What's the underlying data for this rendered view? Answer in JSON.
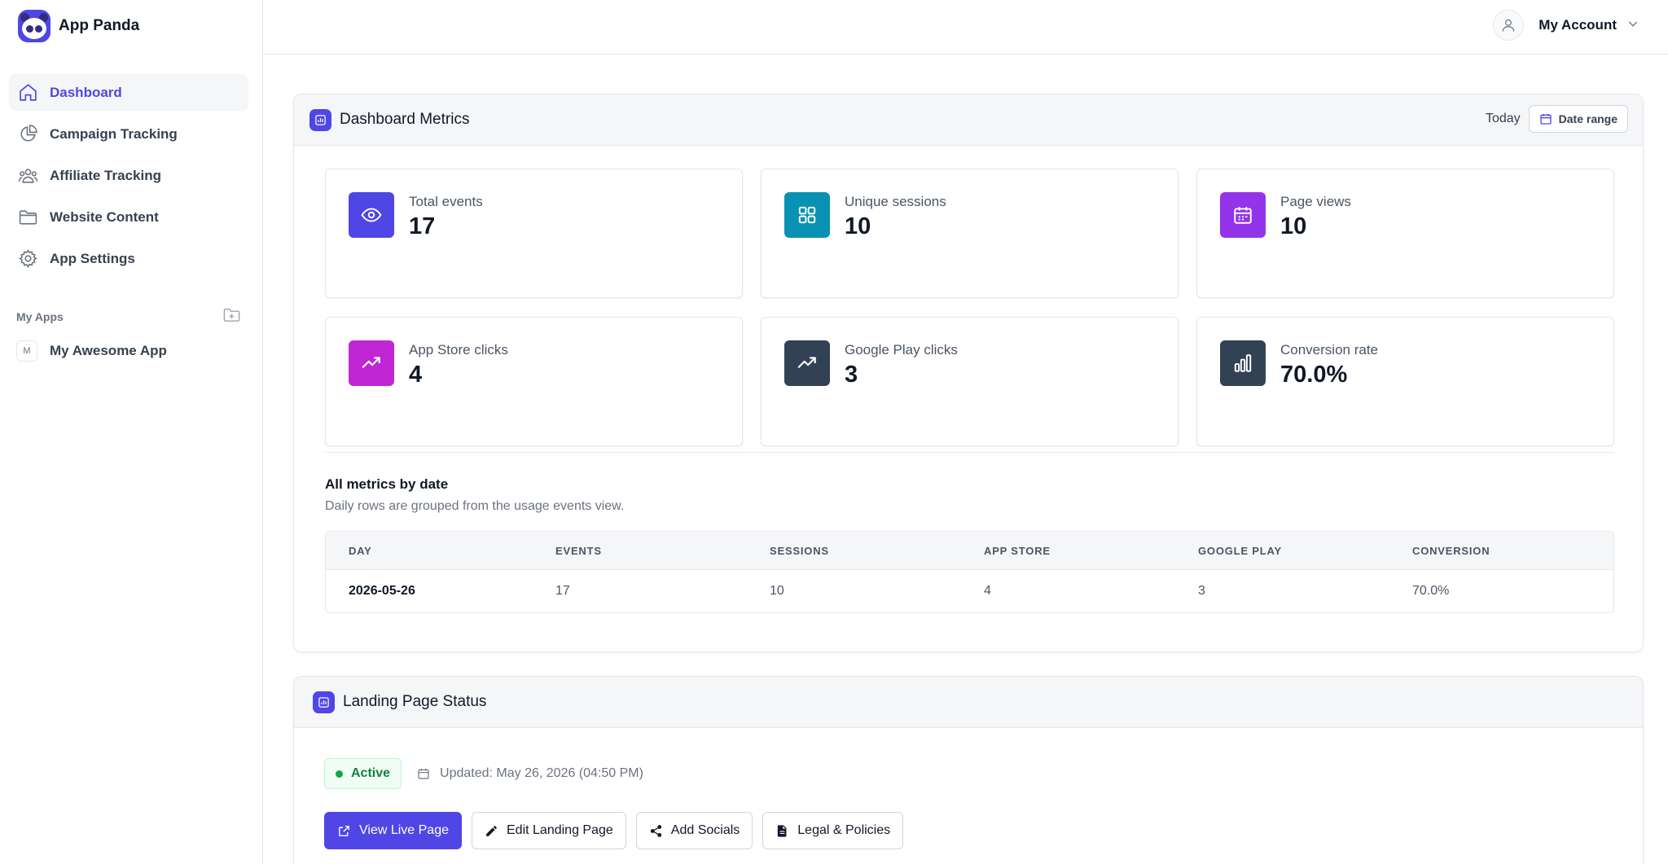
{
  "brand": {
    "name": "App Panda"
  },
  "sidebar": {
    "items": [
      {
        "label": "Dashboard",
        "icon": "home-icon",
        "active": true
      },
      {
        "label": "Campaign Tracking",
        "icon": "pie-chart-icon"
      },
      {
        "label": "Affiliate Tracking",
        "icon": "users-icon"
      },
      {
        "label": "Website Content",
        "icon": "folder-icon"
      },
      {
        "label": "App Settings",
        "icon": "gear-icon"
      }
    ],
    "my_apps_label": "My Apps",
    "apps": [
      {
        "initial": "M",
        "name": "My Awesome App"
      }
    ]
  },
  "header": {
    "account_label": "My Account"
  },
  "metrics_card": {
    "title": "Dashboard Metrics",
    "today_label": "Today",
    "date_range_label": "Date range",
    "metrics": [
      {
        "label": "Total events",
        "value": "17",
        "icon": "eye-icon",
        "color": "#4f46e5"
      },
      {
        "label": "Unique sessions",
        "value": "10",
        "icon": "grid-icon",
        "color": "#0891b2"
      },
      {
        "label": "Page views",
        "value": "10",
        "icon": "calendar-icon",
        "color": "#9333ea"
      },
      {
        "label": "App Store clicks",
        "value": "4",
        "icon": "trending-up-icon",
        "color": "#c026d3"
      },
      {
        "label": "Google Play clicks",
        "value": "3",
        "icon": "trending-up-icon",
        "color": "#334155"
      },
      {
        "label": "Conversion rate",
        "value": "70.0%",
        "icon": "bar-chart-icon",
        "color": "#334155"
      }
    ],
    "section_title": "All metrics by date",
    "section_subtitle": "Daily rows are grouped from the usage events view.",
    "table": {
      "columns": [
        "DAY",
        "EVENTS",
        "SESSIONS",
        "APP STORE",
        "GOOGLE PLAY",
        "CONVERSION"
      ],
      "rows": [
        [
          "2026-05-26",
          "17",
          "10",
          "4",
          "3",
          "70.0%"
        ]
      ]
    }
  },
  "landing_card": {
    "title": "Landing Page Status",
    "status": "Active",
    "updated": "Updated: May 26, 2026 (04:50 PM)",
    "buttons": [
      {
        "label": "View Live Page",
        "icon": "external-link-icon",
        "primary": true
      },
      {
        "label": "Edit Landing Page",
        "icon": "pencil-icon"
      },
      {
        "label": "Add Socials",
        "icon": "share-icon"
      },
      {
        "label": "Legal & Policies",
        "icon": "document-icon"
      }
    ]
  },
  "colors": {
    "accent": "#4f46e5",
    "success": "#16a34a"
  }
}
